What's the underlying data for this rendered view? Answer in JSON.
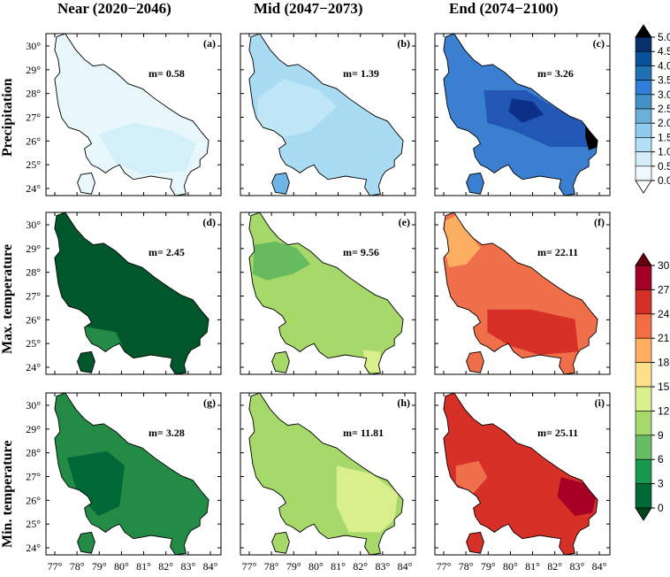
{
  "columns": [
    "Near (2020−2046)",
    "Mid (2047−2073)",
    "End (2074−2100)"
  ],
  "rows": [
    "Precipitation",
    "Max. temperature",
    "Min. temperature"
  ],
  "lon_ticks": [
    "77°",
    "78°",
    "79°",
    "80°",
    "81°",
    "82°",
    "83°",
    "84°"
  ],
  "lat_ticks": [
    "30°",
    "29°",
    "28°",
    "27°",
    "26°",
    "25°",
    "24°"
  ],
  "lon_values": [
    77,
    78,
    79,
    80,
    81,
    82,
    83,
    84
  ],
  "lat_values": [
    30,
    29,
    28,
    27,
    26,
    25,
    24
  ],
  "panels": [
    {
      "label": "(a)",
      "mean": "m= 0.58",
      "zones": [
        [
          "#e8f7fc"
        ],
        [
          "#d3eff8"
        ]
      ]
    },
    {
      "label": "(b)",
      "mean": "m=  1.39",
      "zones": [
        [
          "#a9dcf2"
        ],
        [
          "#bfe6f6"
        ],
        [
          "#6fb4e6"
        ]
      ]
    },
    {
      "label": "(c)",
      "mean": "m= 3.26",
      "zones": [
        [
          "#3b7fd0"
        ],
        [
          "#2257b5"
        ],
        [
          "#0e2f87"
        ],
        [
          "#000000"
        ]
      ]
    },
    {
      "label": "(d)",
      "mean": "m= 2.45",
      "zones": [
        [
          "#00572c"
        ],
        [
          "#238b45"
        ]
      ]
    },
    {
      "label": "(e)",
      "mean": "m= 9.56",
      "zones": [
        [
          "#a6d96a"
        ],
        [
          "#66bb5e"
        ],
        [
          "#d9ef8b"
        ]
      ]
    },
    {
      "label": "(f)",
      "mean": "m= 22.11",
      "zones": [
        [
          "#ee6f4a"
        ],
        [
          "#fbae61"
        ],
        [
          "#d73027"
        ]
      ]
    },
    {
      "label": "(g)",
      "mean": "m= 3.28",
      "zones": [
        [
          "#238b45"
        ],
        [
          "#006837"
        ]
      ]
    },
    {
      "label": "(h)",
      "mean": "m= 11.81",
      "zones": [
        [
          "#a6d96a"
        ],
        [
          "#d9ef8b"
        ]
      ]
    },
    {
      "label": "(i)",
      "mean": "m= 25.11",
      "zones": [
        [
          "#d73027"
        ],
        [
          "#ee6f4a"
        ],
        [
          "#a50026"
        ]
      ]
    }
  ],
  "colorbars": [
    {
      "name": "precipitation",
      "ticks": [
        "5.0",
        "4.5",
        "4.0",
        "3.5",
        "3.0",
        "2.5",
        "2.0",
        "1.5",
        "1.0",
        "0.5",
        "0.0"
      ],
      "colors": [
        "#08306b",
        "#08519c",
        "#2171b5",
        "#2f7ed8",
        "#4292c6",
        "#6baed6",
        "#8ecbef",
        "#b3e0f7",
        "#d4eef9",
        "#eef8fd"
      ],
      "over": "#000000",
      "under": "#ffffff"
    },
    {
      "name": "temperature",
      "ticks": [
        "30",
        "27",
        "24",
        "21",
        "18",
        "15",
        "12",
        "9",
        "6",
        "3",
        "0"
      ],
      "colors": [
        "#a50026",
        "#d73027",
        "#f46d43",
        "#fdae61",
        "#fee08b",
        "#d9ef8b",
        "#a6d96a",
        "#66bd63",
        "#1a9850",
        "#006837"
      ],
      "over": "#67000d",
      "under": "#00441b"
    }
  ]
}
